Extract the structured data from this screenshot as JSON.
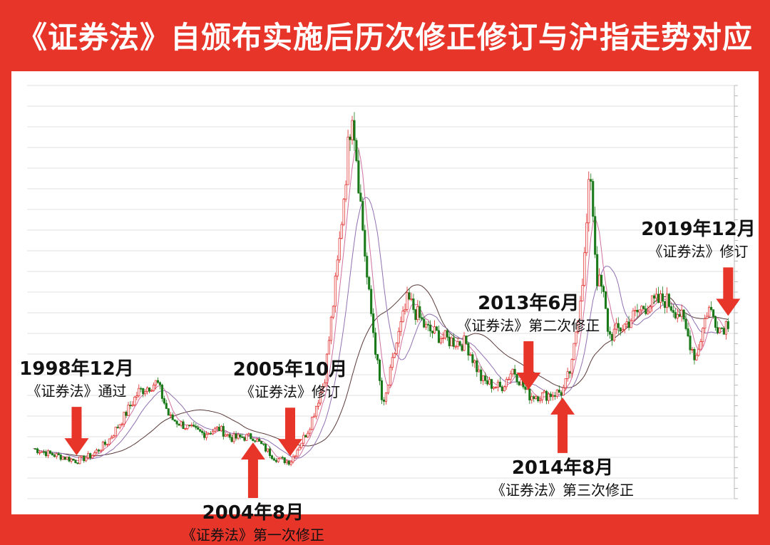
{
  "title": "《证券法》自颁布实施后历次修正修订与沪指走势对应",
  "colors": {
    "background": "#e8352a",
    "arrow": "#e8352a",
    "candle_up": "#e02020",
    "candle_down": "#1a7a1a",
    "ma_short": "#d070a0",
    "ma_mid": "#9070b0",
    "ma_long": "#5a3a3a",
    "grid": "#d8d8d8"
  },
  "chart_data": {
    "type": "line",
    "x": [
      1997.5,
      1998.0,
      1998.5,
      1998.9,
      1999.4,
      1999.9,
      2000.4,
      2000.9,
      2001.5,
      2001.9,
      2002.5,
      2003.0,
      2003.5,
      2003.9,
      2004.6,
      2005.3,
      2005.8,
      2006.4,
      2006.9,
      2007.3,
      2007.8,
      2008.3,
      2008.8,
      2009.2,
      2009.6,
      2010.2,
      2010.9,
      2011.5,
      2012.0,
      2012.6,
      2013.0,
      2013.5,
      2014.0,
      2014.6,
      2014.9,
      2015.3,
      2015.5,
      2015.7,
      2015.9,
      2016.1,
      2016.6,
      2017.2,
      2017.9,
      2018.4,
      2018.9,
      2019.3,
      2019.7,
      2019.95
    ],
    "series": [
      {
        "values": [
          1280,
          1210,
          1160,
          1110,
          1190,
          1370,
          1690,
          2050,
          2180,
          1700,
          1560,
          1480,
          1550,
          1420,
          1440,
          1150,
          1100,
          1550,
          2200,
          3650,
          5950,
          3500,
          1800,
          2650,
          3300,
          2900,
          2750,
          2700,
          2200,
          2100,
          2360,
          2000,
          2000,
          2050,
          2400,
          3800,
          5100,
          3600,
          3400,
          2800,
          2950,
          3200,
          3300,
          3100,
          2500,
          3200,
          2900,
          3000
        ]
      }
    ],
    "annotations": [
      {
        "x": 1998.9,
        "date": "1998年12月",
        "text": "《证券法》通过",
        "direction": "down"
      },
      {
        "x": 2004.6,
        "date": "2004年8月",
        "text": "《证券法》第一次修正",
        "direction": "up"
      },
      {
        "x": 2005.8,
        "date": "2005年10月",
        "text": "《证券法》修订",
        "direction": "down"
      },
      {
        "x": 2013.5,
        "date": "2013年6月",
        "text": "《证券法》第二次修正",
        "direction": "down"
      },
      {
        "x": 2014.6,
        "date": "2014年8月",
        "text": "《证券法》第三次修正",
        "direction": "up"
      },
      {
        "x": 2019.95,
        "date": "2019年12月",
        "text": "《证券法》修订",
        "direction": "down"
      }
    ],
    "title": "《证券法》自颁布实施后历次修正修订与沪指走势对应",
    "grid": true
  }
}
